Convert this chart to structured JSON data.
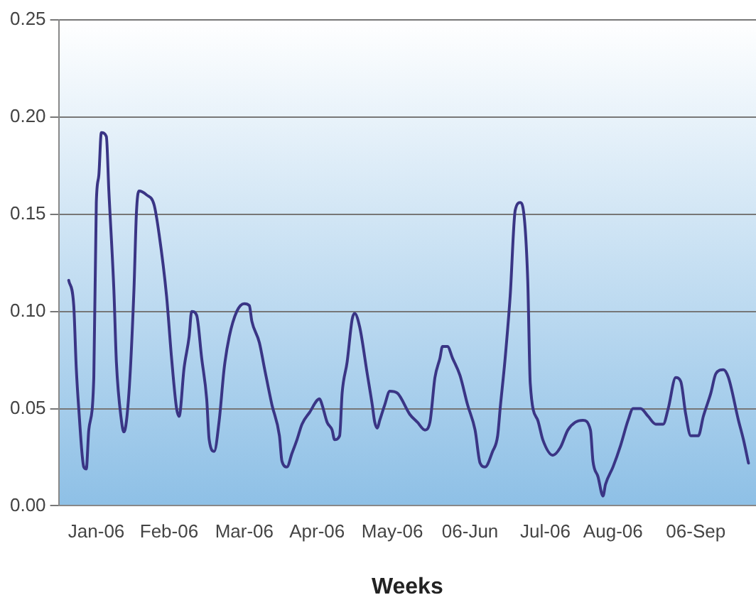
{
  "chart_data": {
    "type": "line",
    "xlabel": "Weeks",
    "xlim": [
      "2006-01-01",
      "2006-10-06"
    ],
    "xticks": [
      {
        "value": "2006-01-16",
        "label": "Jan-06"
      },
      {
        "value": "2006-02-14",
        "label": "Feb-06"
      },
      {
        "value": "2006-03-16",
        "label": "Mar-06"
      },
      {
        "value": "2006-04-14",
        "label": "Apr-06"
      },
      {
        "value": "2006-05-14",
        "label": "May-06"
      },
      {
        "value": "2006-06-14",
        "label": "06-Jun"
      },
      {
        "value": "2006-07-14",
        "label": "Jul-06"
      },
      {
        "value": "2006-08-10",
        "label": "Aug-06"
      },
      {
        "value": "2006-09-12",
        "label": "06-Sep"
      }
    ],
    "ylim": [
      0,
      0.25
    ],
    "yticks": [
      {
        "value": 0,
        "label": "0.00"
      },
      {
        "value": 0.05,
        "label": "0.05"
      },
      {
        "value": 0.1,
        "label": "0.10"
      },
      {
        "value": 0.15,
        "label": "0.15"
      },
      {
        "value": 0.2,
        "label": "0.20"
      },
      {
        "value": 0.25,
        "label": "0.25"
      }
    ],
    "grid": "y",
    "legend": false,
    "marker": "none",
    "line_style": "solid",
    "series": [
      {
        "color": "#3a3585",
        "x": [
          "2006-01-05",
          "2006-01-07",
          "2006-01-08",
          "2006-01-09",
          "2006-01-11",
          "2006-01-12",
          "2006-01-13",
          "2006-01-15",
          "2006-01-16",
          "2006-01-17",
          "2006-01-18",
          "2006-01-20",
          "2006-01-21",
          "2006-01-23",
          "2006-01-24",
          "2006-01-26",
          "2006-01-27",
          "2006-01-29",
          "2006-01-31",
          "2006-02-01",
          "2006-02-02",
          "2006-02-05",
          "2006-02-08",
          "2006-02-10",
          "2006-02-13",
          "2006-02-15",
          "2006-02-17",
          "2006-02-18",
          "2006-02-20",
          "2006-02-22",
          "2006-02-23",
          "2006-02-25",
          "2006-02-27",
          "2006-03-01",
          "2006-03-02",
          "2006-03-04",
          "2006-03-06",
          "2006-03-08",
          "2006-03-10",
          "2006-03-13",
          "2006-03-16",
          "2006-03-18",
          "2006-03-19",
          "2006-03-22",
          "2006-03-24",
          "2006-03-27",
          "2006-03-30",
          "2006-03-31",
          "2006-04-02",
          "2006-04-04",
          "2006-04-06",
          "2006-04-08",
          "2006-04-11",
          "2006-04-15",
          "2006-04-16",
          "2006-04-18",
          "2006-04-20",
          "2006-04-21",
          "2006-04-23",
          "2006-04-24",
          "2006-04-26",
          "2006-04-28",
          "2006-04-29",
          "2006-05-01",
          "2006-05-04",
          "2006-05-06",
          "2006-05-07",
          "2006-05-08",
          "2006-05-09",
          "2006-05-11",
          "2006-05-13",
          "2006-05-16",
          "2006-05-21",
          "2006-05-24",
          "2006-05-27",
          "2006-05-29",
          "2006-05-31",
          "2006-06-02",
          "2006-06-03",
          "2006-06-05",
          "2006-06-07",
          "2006-06-10",
          "2006-06-13",
          "2006-06-16",
          "2006-06-18",
          "2006-06-20",
          "2006-06-23",
          "2006-06-25",
          "2006-06-26",
          "2006-06-28",
          "2006-06-30",
          "2006-07-02",
          "2006-07-04",
          "2006-07-05",
          "2006-07-07",
          "2006-07-08",
          "2006-07-11",
          "2006-07-13",
          "2006-07-17",
          "2006-07-20",
          "2006-07-23",
          "2006-07-26",
          "2006-07-29",
          "2006-08-01",
          "2006-08-02",
          "2006-08-04",
          "2006-08-06",
          "2006-08-07",
          "2006-08-10",
          "2006-08-13",
          "2006-08-16",
          "2006-08-18",
          "2006-08-21",
          "2006-08-24",
          "2006-08-27",
          "2006-08-30",
          "2006-09-01",
          "2006-09-04",
          "2006-09-06",
          "2006-09-08",
          "2006-09-10",
          "2006-09-13",
          "2006-09-15",
          "2006-09-18",
          "2006-09-20",
          "2006-09-23",
          "2006-09-25",
          "2006-09-29",
          "2006-10-01",
          "2006-10-03"
        ],
        "values": [
          0.116,
          0.103,
          0.071,
          0.05,
          0.02,
          0.019,
          0.039,
          0.066,
          0.156,
          0.17,
          0.192,
          0.19,
          0.162,
          0.111,
          0.074,
          0.044,
          0.038,
          0.058,
          0.111,
          0.151,
          0.162,
          0.16,
          0.155,
          0.14,
          0.108,
          0.076,
          0.05,
          0.046,
          0.071,
          0.087,
          0.1,
          0.098,
          0.076,
          0.055,
          0.034,
          0.028,
          0.044,
          0.071,
          0.087,
          0.1,
          0.104,
          0.103,
          0.095,
          0.084,
          0.071,
          0.052,
          0.036,
          0.023,
          0.02,
          0.027,
          0.034,
          0.042,
          0.048,
          0.055,
          0.052,
          0.043,
          0.039,
          0.034,
          0.036,
          0.058,
          0.074,
          0.096,
          0.099,
          0.092,
          0.068,
          0.052,
          0.043,
          0.04,
          0.044,
          0.052,
          0.059,
          0.058,
          0.047,
          0.043,
          0.039,
          0.043,
          0.066,
          0.076,
          0.082,
          0.082,
          0.076,
          0.067,
          0.052,
          0.039,
          0.022,
          0.02,
          0.028,
          0.036,
          0.05,
          0.076,
          0.108,
          0.152,
          0.156,
          0.154,
          0.116,
          0.063,
          0.044,
          0.034,
          0.026,
          0.03,
          0.039,
          0.043,
          0.044,
          0.039,
          0.023,
          0.015,
          0.005,
          0.011,
          0.02,
          0.031,
          0.044,
          0.05,
          0.05,
          0.046,
          0.042,
          0.042,
          0.05,
          0.066,
          0.064,
          0.047,
          0.036,
          0.036,
          0.046,
          0.058,
          0.068,
          0.07,
          0.066,
          0.044,
          0.034,
          0.022
        ]
      }
    ]
  }
}
